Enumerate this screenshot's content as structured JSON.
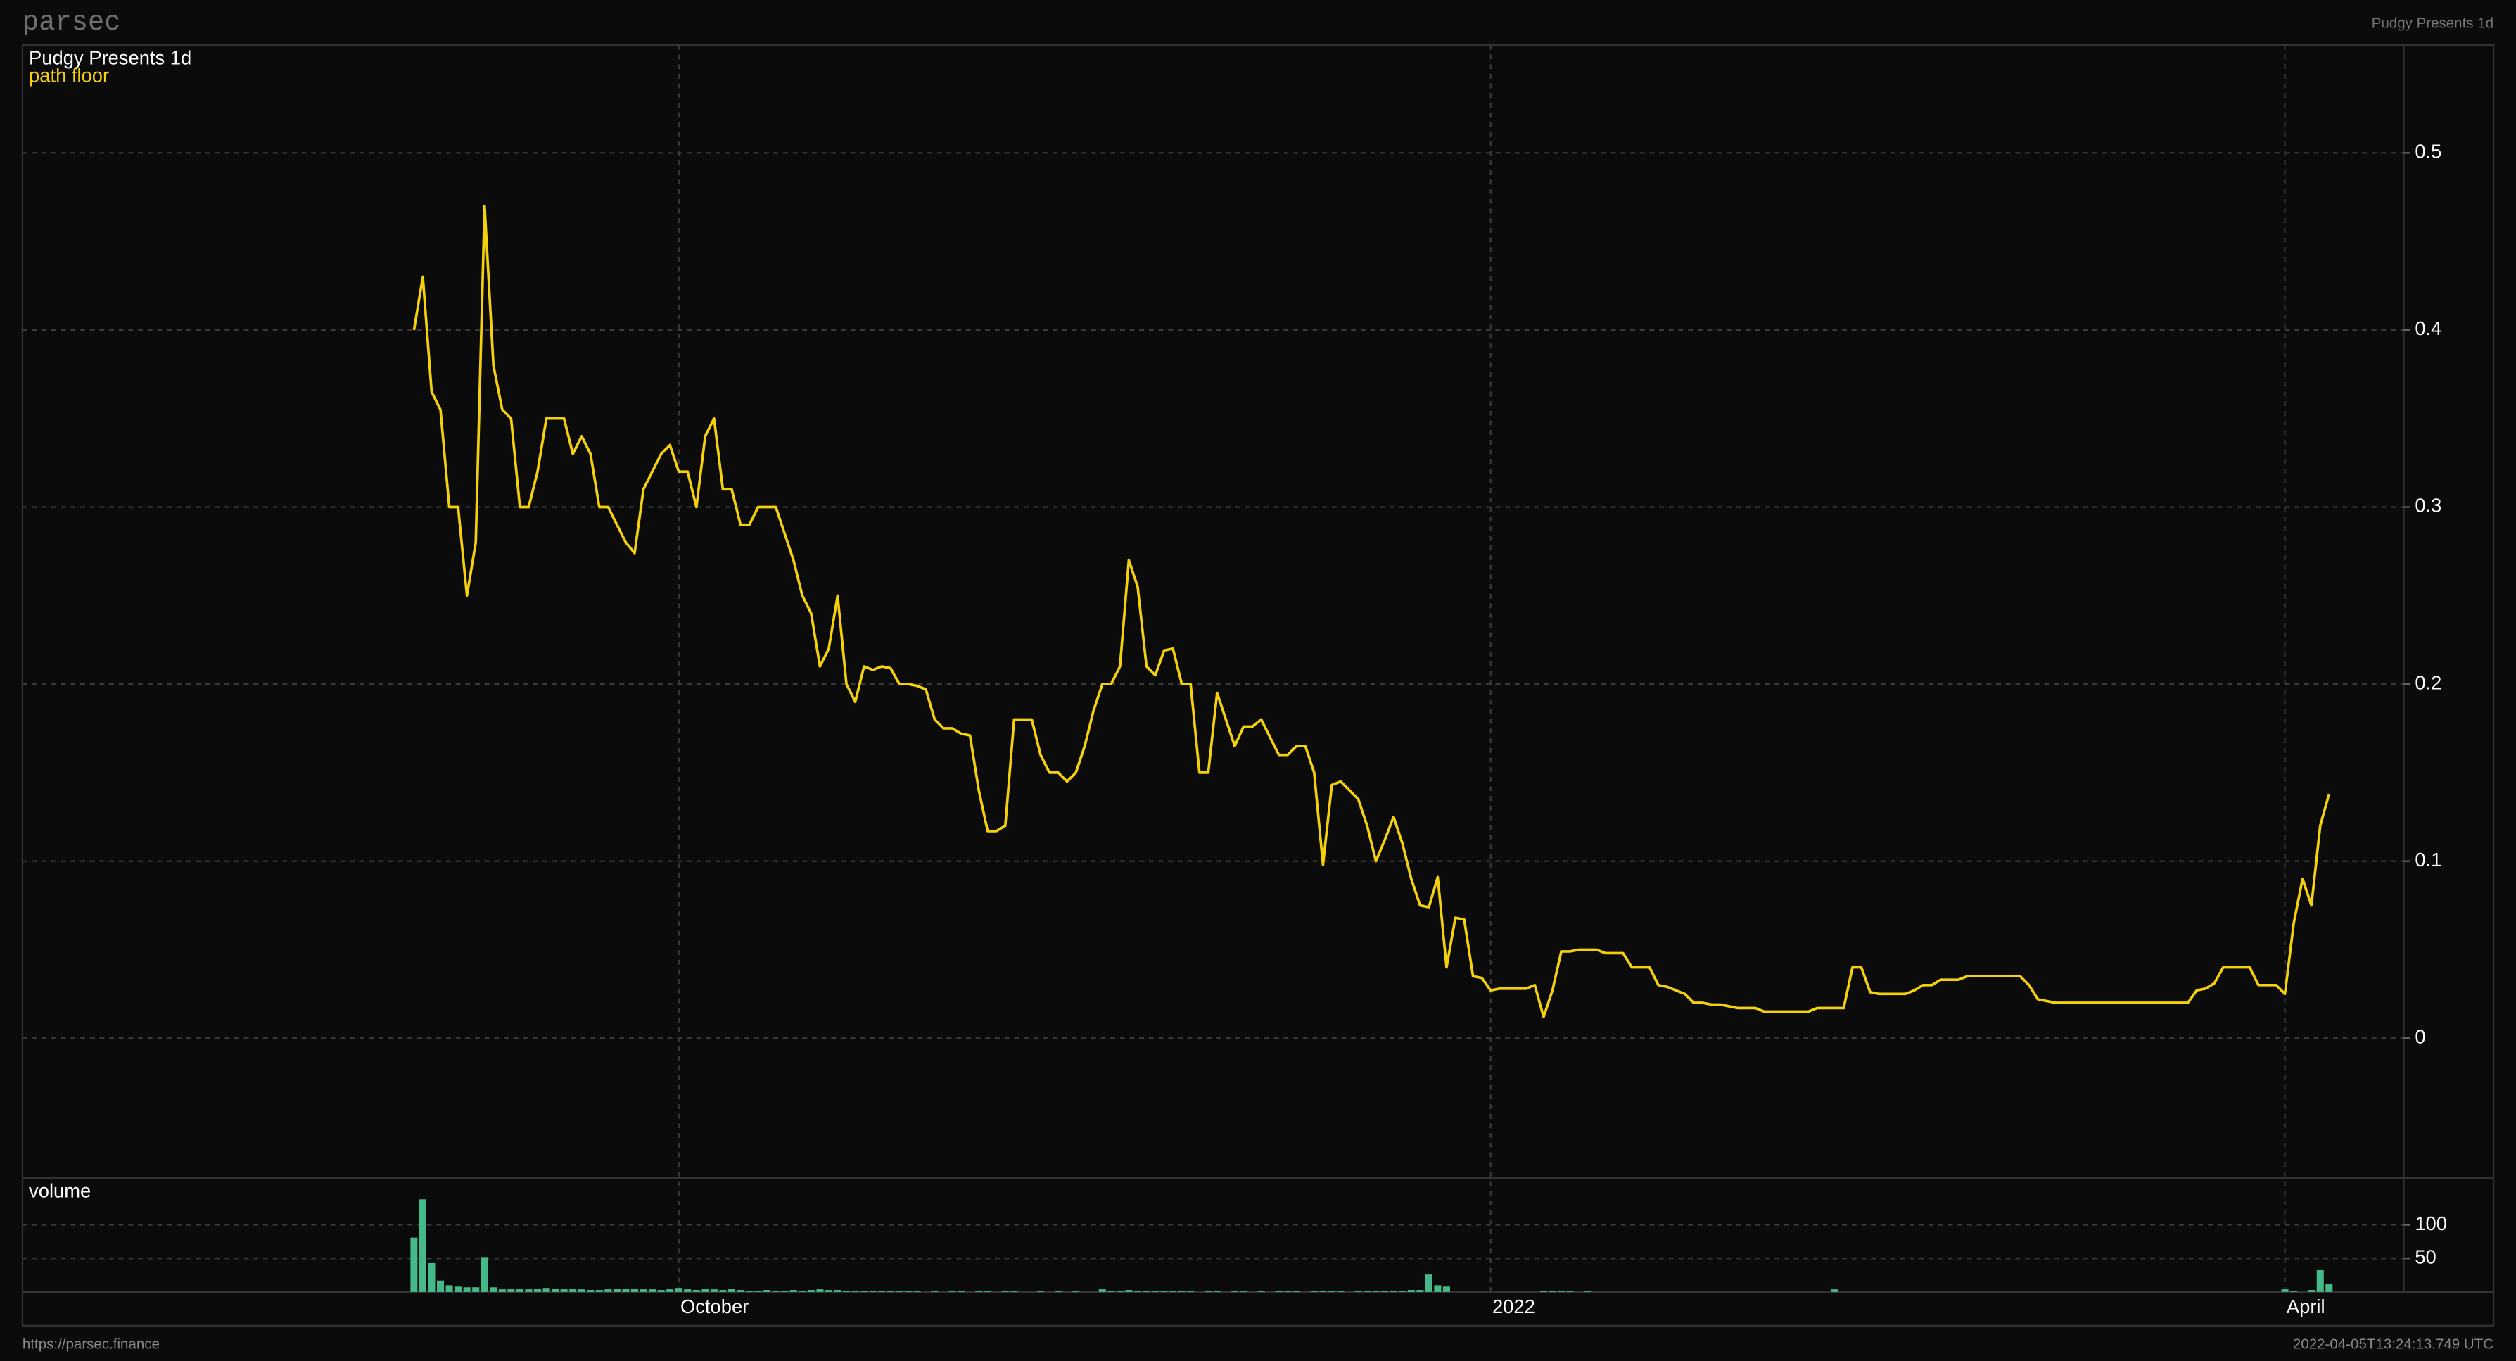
{
  "header": {
    "brand": "parsec",
    "title": "Pudgy Presents 1d"
  },
  "footer": {
    "url": "https://parsec.finance",
    "timestamp": "2022-04-05T13:24:13.749 UTC"
  },
  "chart_data": [
    {
      "type": "line",
      "title": "Pudgy Presents 1d",
      "categories": [
        null,
        null,
        null,
        null,
        null,
        null,
        null,
        null,
        null,
        null,
        null,
        null,
        null,
        null,
        null,
        null,
        null,
        null,
        null,
        null,
        null,
        null,
        null,
        null,
        null,
        null,
        null,
        null,
        null,
        null,
        "October",
        null,
        null,
        null,
        null,
        null,
        null,
        null,
        null,
        null,
        null,
        null,
        null,
        null,
        null,
        null,
        null,
        null,
        null,
        null,
        null,
        null,
        null,
        null,
        null,
        null,
        null,
        null,
        null,
        null,
        null,
        null,
        null,
        null,
        null,
        null,
        null,
        null,
        null,
        null,
        null,
        null,
        null,
        null,
        null,
        null,
        null,
        null,
        null,
        null,
        null,
        null,
        null,
        null,
        null,
        null,
        null,
        null,
        null,
        null,
        null,
        null,
        null,
        null,
        null,
        null,
        null,
        null,
        null,
        null,
        null,
        null,
        null,
        null,
        null,
        null,
        null,
        null,
        null,
        null,
        null,
        null,
        null,
        null,
        null,
        null,
        null,
        null,
        null,
        null,
        null,
        null,
        "2022",
        null,
        null,
        null,
        null,
        null,
        null,
        null,
        null,
        null,
        null,
        null,
        null,
        null,
        null,
        null,
        null,
        null,
        null,
        null,
        null,
        null,
        null,
        null,
        null,
        null,
        null,
        null,
        null,
        null,
        null,
        null,
        null,
        null,
        null,
        null,
        null,
        null,
        null,
        null,
        null,
        null,
        null,
        null,
        null,
        null,
        null,
        null,
        null,
        null,
        null,
        null,
        null,
        null,
        null,
        null,
        null,
        null,
        null,
        null,
        null,
        null,
        null,
        null,
        null,
        null,
        null,
        null,
        null,
        null,
        null,
        null,
        null,
        null,
        null,
        null,
        null,
        null,
        null,
        null,
        null,
        null,
        null,
        null,
        null,
        null,
        null,
        null,
        null,
        null,
        "April",
        null,
        null,
        null,
        null,
        null
      ],
      "series": [
        {
          "name": "path floor",
          "color": "#f5d10c",
          "values": [
            0.4,
            0.43,
            0.365,
            0.355,
            0.3,
            0.3,
            0.25,
            0.28,
            0.47,
            0.38,
            0.355,
            0.35,
            0.3,
            0.3,
            0.32,
            0.35,
            0.35,
            0.35,
            0.33,
            0.34,
            0.33,
            0.3,
            0.3,
            0.29,
            0.28,
            0.274,
            0.31,
            0.32,
            0.33,
            0.335,
            0.32,
            0.32,
            0.3,
            0.34,
            0.35,
            0.31,
            0.31,
            0.29,
            0.29,
            0.3,
            0.3,
            0.3,
            0.285,
            0.27,
            0.25,
            0.24,
            0.21,
            0.22,
            0.25,
            0.2,
            0.19,
            0.21,
            0.208,
            0.21,
            0.209,
            0.2,
            0.2,
            0.199,
            0.197,
            0.18,
            0.175,
            0.175,
            0.172,
            0.171,
            0.14,
            0.117,
            0.117,
            0.12,
            0.18,
            0.18,
            0.18,
            0.16,
            0.15,
            0.15,
            0.145,
            0.15,
            0.165,
            0.185,
            0.2,
            0.2,
            0.21,
            0.27,
            0.255,
            0.21,
            0.205,
            0.219,
            0.22,
            0.2,
            0.2,
            0.15,
            0.15,
            0.195,
            0.18,
            0.165,
            0.176,
            0.176,
            0.18,
            0.17,
            0.16,
            0.16,
            0.165,
            0.165,
            0.15,
            0.098,
            0.143,
            0.145,
            0.14,
            0.135,
            0.12,
            0.1,
            0.112,
            0.125,
            0.11,
            0.09,
            0.075,
            0.074,
            0.091,
            0.04,
            0.068,
            0.067,
            0.035,
            0.034,
            0.027,
            0.028,
            0.028,
            0.028,
            0.028,
            0.03,
            0.012,
            0.027,
            0.049,
            0.049,
            0.05,
            0.05,
            0.05,
            0.048,
            0.048,
            0.048,
            0.04,
            0.04,
            0.04,
            0.03,
            0.029,
            0.027,
            0.025,
            0.02,
            0.02,
            0.019,
            0.019,
            0.018,
            0.017,
            0.017,
            0.017,
            0.015,
            0.015,
            0.015,
            0.015,
            0.015,
            0.015,
            0.017,
            0.017,
            0.017,
            0.017,
            0.04,
            0.04,
            0.026,
            0.025,
            0.025,
            0.025,
            0.025,
            0.027,
            0.03,
            0.03,
            0.033,
            0.033,
            0.033,
            0.035,
            0.035,
            0.035,
            0.035,
            0.035,
            0.035,
            0.035,
            0.03,
            0.022,
            0.021,
            0.02,
            0.02,
            0.02,
            0.02,
            0.02,
            0.02,
            0.02,
            0.02,
            0.02,
            0.02,
            0.02,
            0.02,
            0.02,
            0.02,
            0.02,
            0.02,
            0.027,
            0.028,
            0.031,
            0.04,
            0.04,
            0.04,
            0.04,
            0.03,
            0.03,
            0.03,
            0.025,
            0.065,
            0.09,
            0.075,
            0.12,
            0.138
          ]
        }
      ],
      "ylim": [
        -0.079,
        0.561
      ],
      "yticks": [
        0,
        0.1,
        0.2,
        0.3,
        0.4,
        0.5
      ],
      "grid": true
    },
    {
      "type": "bar",
      "title": "volume",
      "color": "#45b98a",
      "values": [
        81,
        138,
        43,
        17,
        10,
        8,
        7,
        7,
        52,
        7,
        4,
        5,
        5,
        4,
        5,
        6,
        5,
        4,
        5,
        4,
        3,
        3,
        4,
        5,
        5,
        5,
        4,
        4,
        3,
        4,
        6,
        4,
        3,
        5,
        4,
        3,
        5,
        3,
        2,
        2,
        3,
        2,
        2,
        3,
        2,
        3,
        4,
        3,
        3,
        2,
        2,
        2,
        1,
        2,
        1,
        1,
        1,
        1,
        0,
        1,
        0,
        1,
        1,
        0,
        1,
        1,
        0,
        2,
        1,
        0,
        0,
        1,
        0,
        1,
        0,
        1,
        0,
        0,
        4,
        1,
        1,
        3,
        2,
        2,
        1,
        2,
        1,
        1,
        1,
        0,
        1,
        1,
        0,
        1,
        1,
        0,
        1,
        0,
        1,
        1,
        1,
        0,
        1,
        1,
        1,
        1,
        0,
        1,
        1,
        1,
        2,
        2,
        2,
        3,
        3,
        26,
        10,
        8,
        0,
        0,
        0,
        0,
        0,
        0,
        0,
        0,
        0,
        0,
        1,
        2,
        1,
        1,
        0,
        2,
        0,
        0,
        0,
        0,
        0,
        0,
        0,
        0,
        0,
        0,
        0,
        0,
        0,
        0,
        0,
        0,
        0,
        0,
        0,
        0,
        0,
        0,
        0,
        0,
        0,
        0,
        0,
        4,
        0,
        0,
        0,
        0,
        0,
        0,
        0,
        0,
        0,
        0,
        0,
        0,
        0,
        0,
        0,
        0,
        0,
        0,
        0,
        0,
        0,
        0,
        0,
        0,
        0,
        0,
        0,
        0,
        0,
        0,
        0,
        0,
        0,
        0,
        0,
        0,
        0,
        0,
        0,
        0,
        0,
        0,
        0,
        0,
        0,
        0,
        0,
        0,
        0,
        0,
        4,
        2,
        0,
        3,
        33,
        12
      ],
      "ylim": [
        0,
        165
      ],
      "yticks": [
        50,
        100
      ],
      "grid": true
    }
  ]
}
